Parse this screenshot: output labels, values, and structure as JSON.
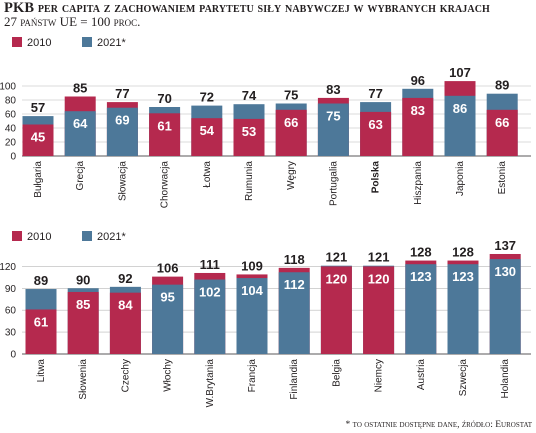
{
  "title": "PKB per capita z zachowaniem parytetu siły nabywczej w wybranych krajach",
  "subtitle": "27 państw UE = 100 proc.",
  "footnote": "* to ostatnie dostępne dane, źródło: Eurostat",
  "colors": {
    "s2010": "#b5294e",
    "s2021": "#4d7899",
    "grid": "#b8b8b8"
  },
  "chart_data": [
    {
      "type": "bar",
      "legend_position": "top-left",
      "series": [
        {
          "name": "2010"
        },
        {
          "name": "2021*"
        }
      ],
      "ylim": [
        0,
        120
      ],
      "yticks": [
        0,
        20,
        40,
        60,
        80,
        100
      ],
      "grid": true,
      "categories": [
        "Bułgaria",
        "Grecja",
        "Słowacja",
        "Chorwacja",
        "Łotwa",
        "Rumunia",
        "Węgry",
        "Portugalia",
        "Polska",
        "Hiszpania",
        "Japonia",
        "Estonia"
      ],
      "values_2010": [
        45,
        85,
        77,
        61,
        54,
        53,
        66,
        83,
        63,
        83,
        107,
        66
      ],
      "values_2021": [
        57,
        64,
        69,
        70,
        72,
        74,
        75,
        75,
        77,
        96,
        86,
        89
      ],
      "highlight": "Polska"
    },
    {
      "type": "bar",
      "legend_position": "top-left",
      "series": [
        {
          "name": "2010"
        },
        {
          "name": "2021*"
        }
      ],
      "ylim": [
        0,
        150
      ],
      "yticks": [
        0,
        30,
        60,
        90,
        120
      ],
      "grid": true,
      "categories": [
        "Litwa",
        "Słowenia",
        "Czechy",
        "Włochy",
        "W.Brytania",
        "Francja",
        "Finlandia",
        "Belgia",
        "Niemcy",
        "Austria",
        "Szwecja",
        "Holandia"
      ],
      "values_2010": [
        61,
        85,
        84,
        106,
        111,
        109,
        118,
        120,
        120,
        128,
        128,
        137
      ],
      "values_2021": [
        89,
        90,
        92,
        95,
        102,
        104,
        112,
        121,
        121,
        123,
        123,
        130
      ],
      "highlight": ""
    }
  ]
}
